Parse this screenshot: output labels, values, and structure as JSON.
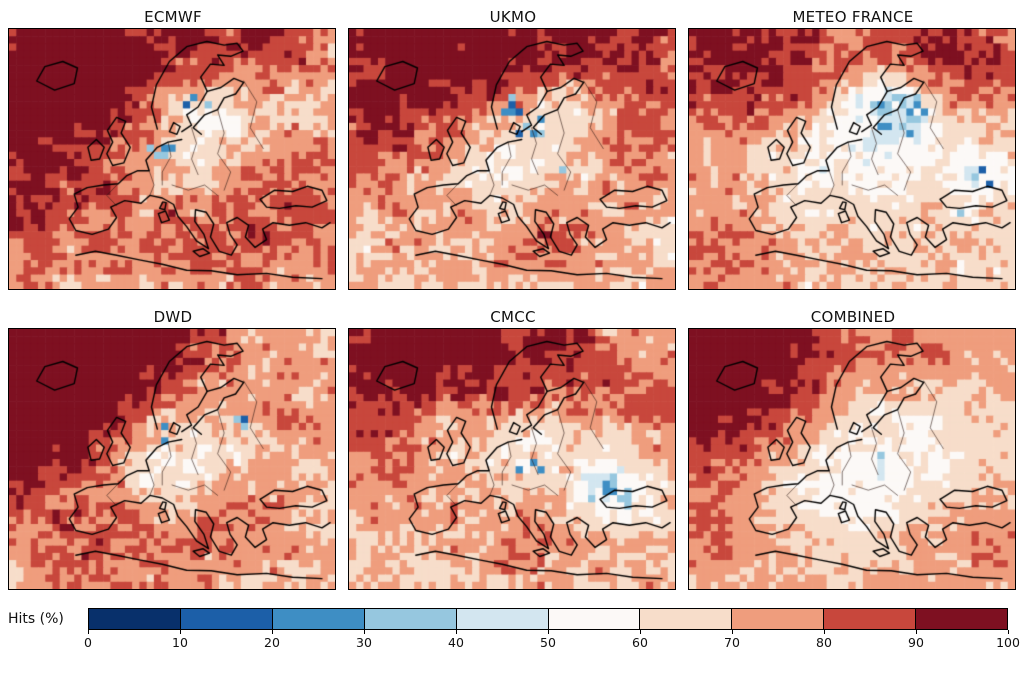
{
  "chart_data": {
    "type": "heatmap",
    "description": "Grid of six pixelated hit-rate (%) maps over Europe and the North Atlantic for different seasonal forecast systems, shared discrete red-blue colorbar.",
    "grid": {
      "cols": 45,
      "rows": 36
    },
    "panels": [
      {
        "title": "ECMWF",
        "seed": 11,
        "base": 72,
        "noise": 15,
        "blobs": [
          [
            0.05,
            0.3,
            0.28,
            24
          ],
          [
            0.25,
            0.08,
            0.22,
            16
          ],
          [
            0.55,
            0.06,
            0.12,
            10
          ],
          [
            0.8,
            0.06,
            0.12,
            16
          ],
          [
            0.62,
            0.33,
            0.12,
            -16
          ],
          [
            0.5,
            0.52,
            0.12,
            -10
          ],
          [
            0.88,
            0.72,
            0.15,
            12
          ],
          [
            0.55,
            0.8,
            0.18,
            8
          ],
          [
            0.02,
            0.75,
            0.12,
            10
          ]
        ],
        "blue_spots": [
          [
            0.6,
            0.28,
            0.06,
            0.25
          ],
          [
            0.47,
            0.47,
            0.04,
            0.2
          ]
        ]
      },
      {
        "title": "UKMO",
        "seed": 23,
        "base": 71,
        "noise": 15,
        "blobs": [
          [
            0.15,
            0.06,
            0.3,
            22
          ],
          [
            0.45,
            0.1,
            0.18,
            14
          ],
          [
            0.85,
            0.08,
            0.18,
            18
          ],
          [
            0.05,
            0.35,
            0.15,
            10
          ],
          [
            0.52,
            0.42,
            0.16,
            -14
          ],
          [
            0.65,
            0.3,
            0.1,
            -10
          ],
          [
            0.45,
            0.6,
            0.1,
            -8
          ],
          [
            0.6,
            0.78,
            0.12,
            10
          ],
          [
            0.9,
            0.45,
            0.1,
            8
          ]
        ],
        "blue_spots": [
          [
            0.55,
            0.38,
            0.06,
            0.3
          ],
          [
            0.5,
            0.3,
            0.05,
            0.2
          ],
          [
            0.63,
            0.55,
            0.04,
            0.15
          ]
        ]
      },
      {
        "title": "METEO FRANCE",
        "seed": 37,
        "base": 70,
        "noise": 14,
        "blobs": [
          [
            0.06,
            0.08,
            0.22,
            20
          ],
          [
            0.3,
            0.12,
            0.15,
            10
          ],
          [
            0.9,
            0.08,
            0.16,
            18
          ],
          [
            0.7,
            0.05,
            0.12,
            12
          ],
          [
            0.55,
            0.5,
            0.18,
            -12
          ],
          [
            0.63,
            0.32,
            0.1,
            -26
          ],
          [
            0.92,
            0.55,
            0.1,
            -14
          ],
          [
            0.3,
            0.6,
            0.12,
            -6
          ],
          [
            0.1,
            0.8,
            0.15,
            10
          ]
        ],
        "blue_spots": [
          [
            0.64,
            0.33,
            0.09,
            0.45
          ],
          [
            0.9,
            0.58,
            0.06,
            0.3
          ],
          [
            0.85,
            0.75,
            0.05,
            0.2
          ]
        ]
      },
      {
        "title": "DWD",
        "seed": 47,
        "base": 72,
        "noise": 15,
        "blobs": [
          [
            0.1,
            0.12,
            0.33,
            26
          ],
          [
            0.35,
            0.08,
            0.2,
            16
          ],
          [
            0.03,
            0.45,
            0.15,
            14
          ],
          [
            0.55,
            0.42,
            0.18,
            -14
          ],
          [
            0.45,
            0.55,
            0.1,
            -8
          ],
          [
            0.65,
            0.7,
            0.12,
            8
          ],
          [
            0.85,
            0.3,
            0.1,
            6
          ],
          [
            0.3,
            0.85,
            0.15,
            8
          ]
        ],
        "blue_spots": [
          [
            0.5,
            0.4,
            0.05,
            0.2
          ],
          [
            0.15,
            0.7,
            0.04,
            0.2
          ],
          [
            0.7,
            0.35,
            0.04,
            0.15
          ]
        ]
      },
      {
        "title": "CMCC",
        "seed": 59,
        "base": 71,
        "noise": 15,
        "blobs": [
          [
            0.12,
            0.1,
            0.3,
            24
          ],
          [
            0.4,
            0.06,
            0.18,
            14
          ],
          [
            0.7,
            0.08,
            0.15,
            10
          ],
          [
            0.5,
            0.48,
            0.17,
            -14
          ],
          [
            0.8,
            0.62,
            0.09,
            -22
          ],
          [
            0.3,
            0.35,
            0.1,
            -8
          ],
          [
            0.6,
            0.8,
            0.15,
            8
          ],
          [
            0.95,
            0.3,
            0.1,
            10
          ]
        ],
        "blue_spots": [
          [
            0.81,
            0.63,
            0.07,
            0.4
          ],
          [
            0.55,
            0.52,
            0.05,
            0.2
          ],
          [
            0.66,
            0.4,
            0.04,
            0.15
          ]
        ]
      },
      {
        "title": "COMBINED",
        "seed": 71,
        "base": 72,
        "noise": 11,
        "blobs": [
          [
            0.05,
            0.25,
            0.28,
            20
          ],
          [
            0.22,
            0.06,
            0.25,
            16
          ],
          [
            0.75,
            0.08,
            0.12,
            8
          ],
          [
            0.55,
            0.45,
            0.25,
            -16
          ],
          [
            0.45,
            0.6,
            0.15,
            -8
          ],
          [
            0.85,
            0.8,
            0.12,
            8
          ],
          [
            0.05,
            0.8,
            0.1,
            8
          ]
        ],
        "blue_spots": [
          [
            0.6,
            0.5,
            0.04,
            0.1
          ]
        ]
      }
    ],
    "colorbar": {
      "label": "Hits (%)",
      "ticks": [
        0,
        10,
        20,
        30,
        40,
        50,
        60,
        70,
        80,
        90,
        100
      ],
      "colors": [
        "#08306b",
        "#1c5fa8",
        "#3e8ec4",
        "#96c7df",
        "#d3e6f0",
        "#fcf9f7",
        "#f7ddca",
        "#ef9d7d",
        "#c8473c",
        "#7e1021"
      ]
    },
    "basemap": {
      "coastlines": [
        [
          [
            0.085,
            0.2
          ],
          [
            0.11,
            0.145
          ],
          [
            0.165,
            0.125
          ],
          [
            0.21,
            0.15
          ],
          [
            0.2,
            0.21
          ],
          [
            0.14,
            0.235
          ],
          [
            0.085,
            0.2
          ]
        ],
        [
          [
            0.318,
            0.525
          ],
          [
            0.3,
            0.48
          ],
          [
            0.318,
            0.435
          ],
          [
            0.302,
            0.39
          ],
          [
            0.33,
            0.34
          ],
          [
            0.358,
            0.355
          ],
          [
            0.344,
            0.4
          ],
          [
            0.372,
            0.455
          ],
          [
            0.352,
            0.515
          ],
          [
            0.318,
            0.525
          ]
        ],
        [
          [
            0.252,
            0.505
          ],
          [
            0.242,
            0.455
          ],
          [
            0.268,
            0.425
          ],
          [
            0.292,
            0.455
          ],
          [
            0.278,
            0.5
          ],
          [
            0.252,
            0.505
          ]
        ],
        [
          [
            0.455,
            0.385
          ],
          [
            0.437,
            0.3
          ],
          [
            0.452,
            0.215
          ],
          [
            0.492,
            0.125
          ],
          [
            0.545,
            0.068
          ],
          [
            0.607,
            0.048
          ],
          [
            0.66,
            0.062
          ],
          [
            0.7,
            0.055
          ],
          [
            0.718,
            0.085
          ],
          [
            0.68,
            0.105
          ],
          [
            0.64,
            0.1
          ],
          [
            0.66,
            0.14
          ],
          [
            0.618,
            0.135
          ],
          [
            0.588,
            0.185
          ],
          [
            0.608,
            0.24
          ],
          [
            0.58,
            0.3
          ],
          [
            0.545,
            0.33
          ],
          [
            0.56,
            0.37
          ],
          [
            0.53,
            0.395
          ]
        ],
        [
          [
            0.608,
            0.24
          ],
          [
            0.65,
            0.225
          ],
          [
            0.69,
            0.19
          ],
          [
            0.72,
            0.205
          ],
          [
            0.695,
            0.25
          ],
          [
            0.66,
            0.265
          ],
          [
            0.64,
            0.31
          ],
          [
            0.6,
            0.33
          ],
          [
            0.565,
            0.38
          ],
          [
            0.59,
            0.405
          ]
        ],
        [
          [
            0.492,
            0.395
          ],
          [
            0.505,
            0.36
          ],
          [
            0.525,
            0.375
          ],
          [
            0.515,
            0.405
          ],
          [
            0.492,
            0.395
          ]
        ],
        [
          [
            0.53,
            0.425
          ],
          [
            0.488,
            0.435
          ],
          [
            0.455,
            0.455
          ],
          [
            0.42,
            0.505
          ],
          [
            0.43,
            0.545
          ],
          [
            0.395,
            0.545
          ],
          [
            0.36,
            0.565
          ],
          [
            0.335,
            0.595
          ],
          [
            0.29,
            0.6
          ],
          [
            0.24,
            0.61
          ],
          [
            0.2,
            0.635
          ],
          [
            0.212,
            0.685
          ],
          [
            0.185,
            0.73
          ],
          [
            0.205,
            0.775
          ],
          [
            0.255,
            0.79
          ],
          [
            0.305,
            0.77
          ],
          [
            0.33,
            0.725
          ],
          [
            0.312,
            0.685
          ],
          [
            0.355,
            0.66
          ],
          [
            0.405,
            0.67
          ],
          [
            0.432,
            0.64
          ],
          [
            0.47,
            0.65
          ],
          [
            0.505,
            0.675
          ],
          [
            0.518,
            0.72
          ],
          [
            0.545,
            0.76
          ],
          [
            0.575,
            0.815
          ],
          [
            0.612,
            0.845
          ],
          [
            0.598,
            0.79
          ],
          [
            0.57,
            0.74
          ],
          [
            0.572,
            0.695
          ],
          [
            0.605,
            0.705
          ],
          [
            0.628,
            0.75
          ],
          [
            0.618,
            0.8
          ],
          [
            0.645,
            0.855
          ],
          [
            0.682,
            0.87
          ],
          [
            0.7,
            0.83
          ],
          [
            0.678,
            0.79
          ],
          [
            0.668,
            0.745
          ],
          [
            0.7,
            0.725
          ],
          [
            0.735,
            0.755
          ],
          [
            0.725,
            0.8
          ],
          [
            0.755,
            0.84
          ],
          [
            0.79,
            0.81
          ],
          [
            0.778,
            0.77
          ],
          [
            0.81,
            0.745
          ],
          [
            0.86,
            0.755
          ],
          [
            0.91,
            0.745
          ],
          [
            0.96,
            0.765
          ],
          [
            0.985,
            0.745
          ]
        ],
        [
          [
            0.77,
            0.655
          ],
          [
            0.815,
            0.62
          ],
          [
            0.87,
            0.625
          ],
          [
            0.915,
            0.605
          ],
          [
            0.96,
            0.62
          ],
          [
            0.975,
            0.66
          ],
          [
            0.93,
            0.685
          ],
          [
            0.88,
            0.68
          ],
          [
            0.83,
            0.69
          ],
          [
            0.79,
            0.685
          ],
          [
            0.77,
            0.655
          ]
        ],
        [
          [
            0.205,
            0.87
          ],
          [
            0.265,
            0.855
          ],
          [
            0.33,
            0.87
          ],
          [
            0.4,
            0.888
          ],
          [
            0.47,
            0.905
          ],
          [
            0.545,
            0.928
          ],
          [
            0.62,
            0.93
          ],
          [
            0.7,
            0.945
          ],
          [
            0.79,
            0.94
          ],
          [
            0.87,
            0.955
          ],
          [
            0.96,
            0.96
          ]
        ],
        [
          [
            0.468,
            0.745
          ],
          [
            0.458,
            0.71
          ],
          [
            0.48,
            0.7
          ],
          [
            0.492,
            0.735
          ],
          [
            0.468,
            0.745
          ]
        ],
        [
          [
            0.565,
            0.855
          ],
          [
            0.595,
            0.845
          ],
          [
            0.615,
            0.862
          ],
          [
            0.585,
            0.875
          ],
          [
            0.565,
            0.855
          ]
        ],
        [
          [
            0.472,
            0.665
          ],
          [
            0.462,
            0.69
          ],
          [
            0.478,
            0.695
          ],
          [
            0.482,
            0.668
          ],
          [
            0.472,
            0.665
          ]
        ]
      ],
      "borders": [
        [
          [
            0.43,
            0.545
          ],
          [
            0.445,
            0.6
          ],
          [
            0.432,
            0.64
          ]
        ],
        [
          [
            0.488,
            0.435
          ],
          [
            0.497,
            0.49
          ],
          [
            0.47,
            0.55
          ],
          [
            0.47,
            0.6
          ]
        ],
        [
          [
            0.56,
            0.38
          ],
          [
            0.575,
            0.44
          ],
          [
            0.56,
            0.5
          ],
          [
            0.58,
            0.56
          ]
        ],
        [
          [
            0.64,
            0.31
          ],
          [
            0.66,
            0.4
          ],
          [
            0.64,
            0.48
          ],
          [
            0.68,
            0.55
          ],
          [
            0.66,
            0.62
          ]
        ],
        [
          [
            0.5,
            0.6
          ],
          [
            0.55,
            0.62
          ],
          [
            0.6,
            0.6
          ],
          [
            0.64,
            0.64
          ]
        ],
        [
          [
            0.335,
            0.595
          ],
          [
            0.3,
            0.64
          ],
          [
            0.33,
            0.68
          ]
        ],
        [
          [
            0.72,
            0.2
          ],
          [
            0.76,
            0.28
          ],
          [
            0.74,
            0.38
          ],
          [
            0.78,
            0.46
          ]
        ]
      ]
    }
  }
}
